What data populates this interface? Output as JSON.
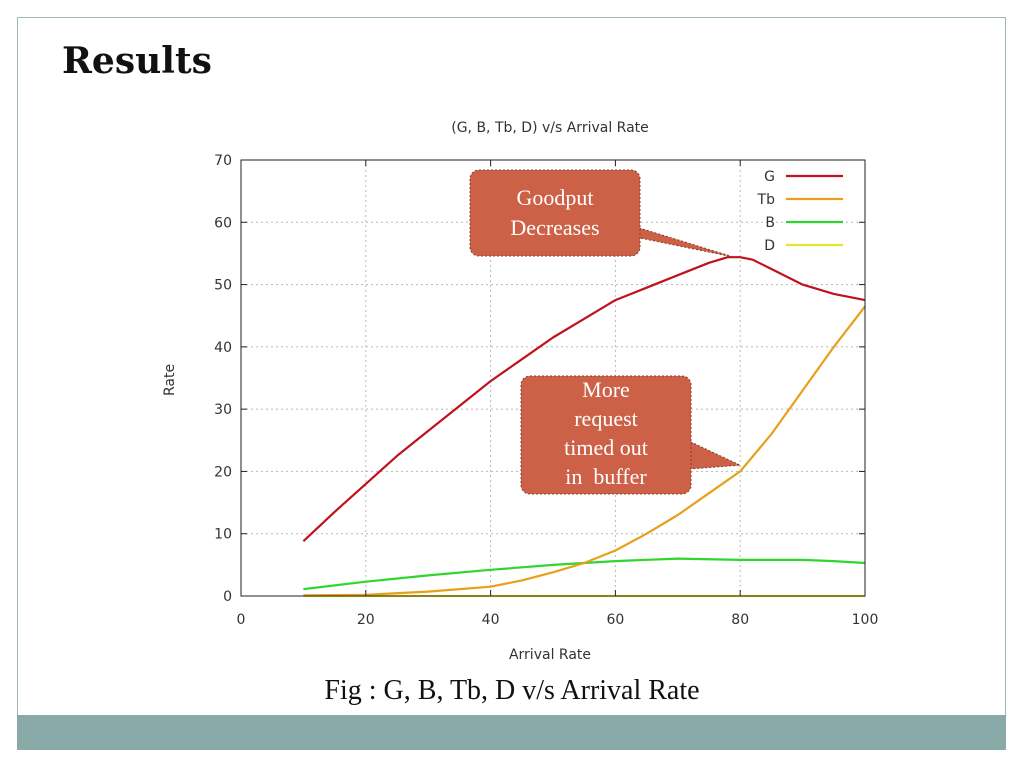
{
  "slide": {
    "title": "Results",
    "caption": "Fig : G, B, Tb, D v/s Arrival Rate",
    "accent_color": "#8aaaaa"
  },
  "chart_data": {
    "type": "line",
    "title": "(G, B, Tb, D) v/s Arrival Rate",
    "xlabel": "Arrival Rate",
    "ylabel": "Rate",
    "xlim": [
      0,
      100
    ],
    "ylim": [
      0,
      70
    ],
    "xticks": [
      0,
      20,
      40,
      60,
      80,
      100
    ],
    "yticks": [
      0,
      10,
      20,
      30,
      40,
      50,
      60,
      70
    ],
    "grid": true,
    "legend_position": "top-right",
    "series": [
      {
        "name": "G",
        "color": "#c0121c",
        "x": [
          10,
          15,
          20,
          25,
          30,
          35,
          40,
          45,
          50,
          55,
          60,
          65,
          70,
          75,
          78,
          80,
          82,
          85,
          90,
          95,
          100
        ],
        "y": [
          8.8,
          13.5,
          18,
          22.5,
          26.5,
          30.5,
          34.5,
          38,
          41.5,
          44.5,
          47.5,
          49.5,
          51.5,
          53.5,
          54.4,
          54.4,
          54,
          52.5,
          50,
          48.5,
          47.5
        ]
      },
      {
        "name": "Tb",
        "color": "#e6a019",
        "x": [
          10,
          20,
          30,
          40,
          45,
          50,
          55,
          60,
          65,
          70,
          75,
          80,
          85,
          90,
          95,
          100
        ],
        "y": [
          0.1,
          0.2,
          0.7,
          1.5,
          2.5,
          3.8,
          5.3,
          7.3,
          10,
          13,
          16.5,
          20,
          26,
          33,
          40,
          46.5
        ]
      },
      {
        "name": "B",
        "color": "#2fd62f",
        "x": [
          10,
          20,
          30,
          40,
          50,
          60,
          70,
          80,
          90,
          95,
          100
        ],
        "y": [
          1.1,
          2.3,
          3.3,
          4.2,
          5.0,
          5.6,
          6.0,
          5.8,
          5.8,
          5.6,
          5.3
        ]
      },
      {
        "name": "D",
        "color": "#e5e52a",
        "x": [
          10,
          100
        ],
        "y": [
          0,
          0
        ]
      }
    ],
    "annotations": [
      {
        "text_lines": [
          "Goodput",
          "Decreases"
        ],
        "points_to": [
          79,
          54.4
        ]
      },
      {
        "text_lines": [
          "More",
          "request",
          "timed out",
          "in  buffer"
        ],
        "points_to": [
          80,
          21
        ]
      }
    ]
  }
}
